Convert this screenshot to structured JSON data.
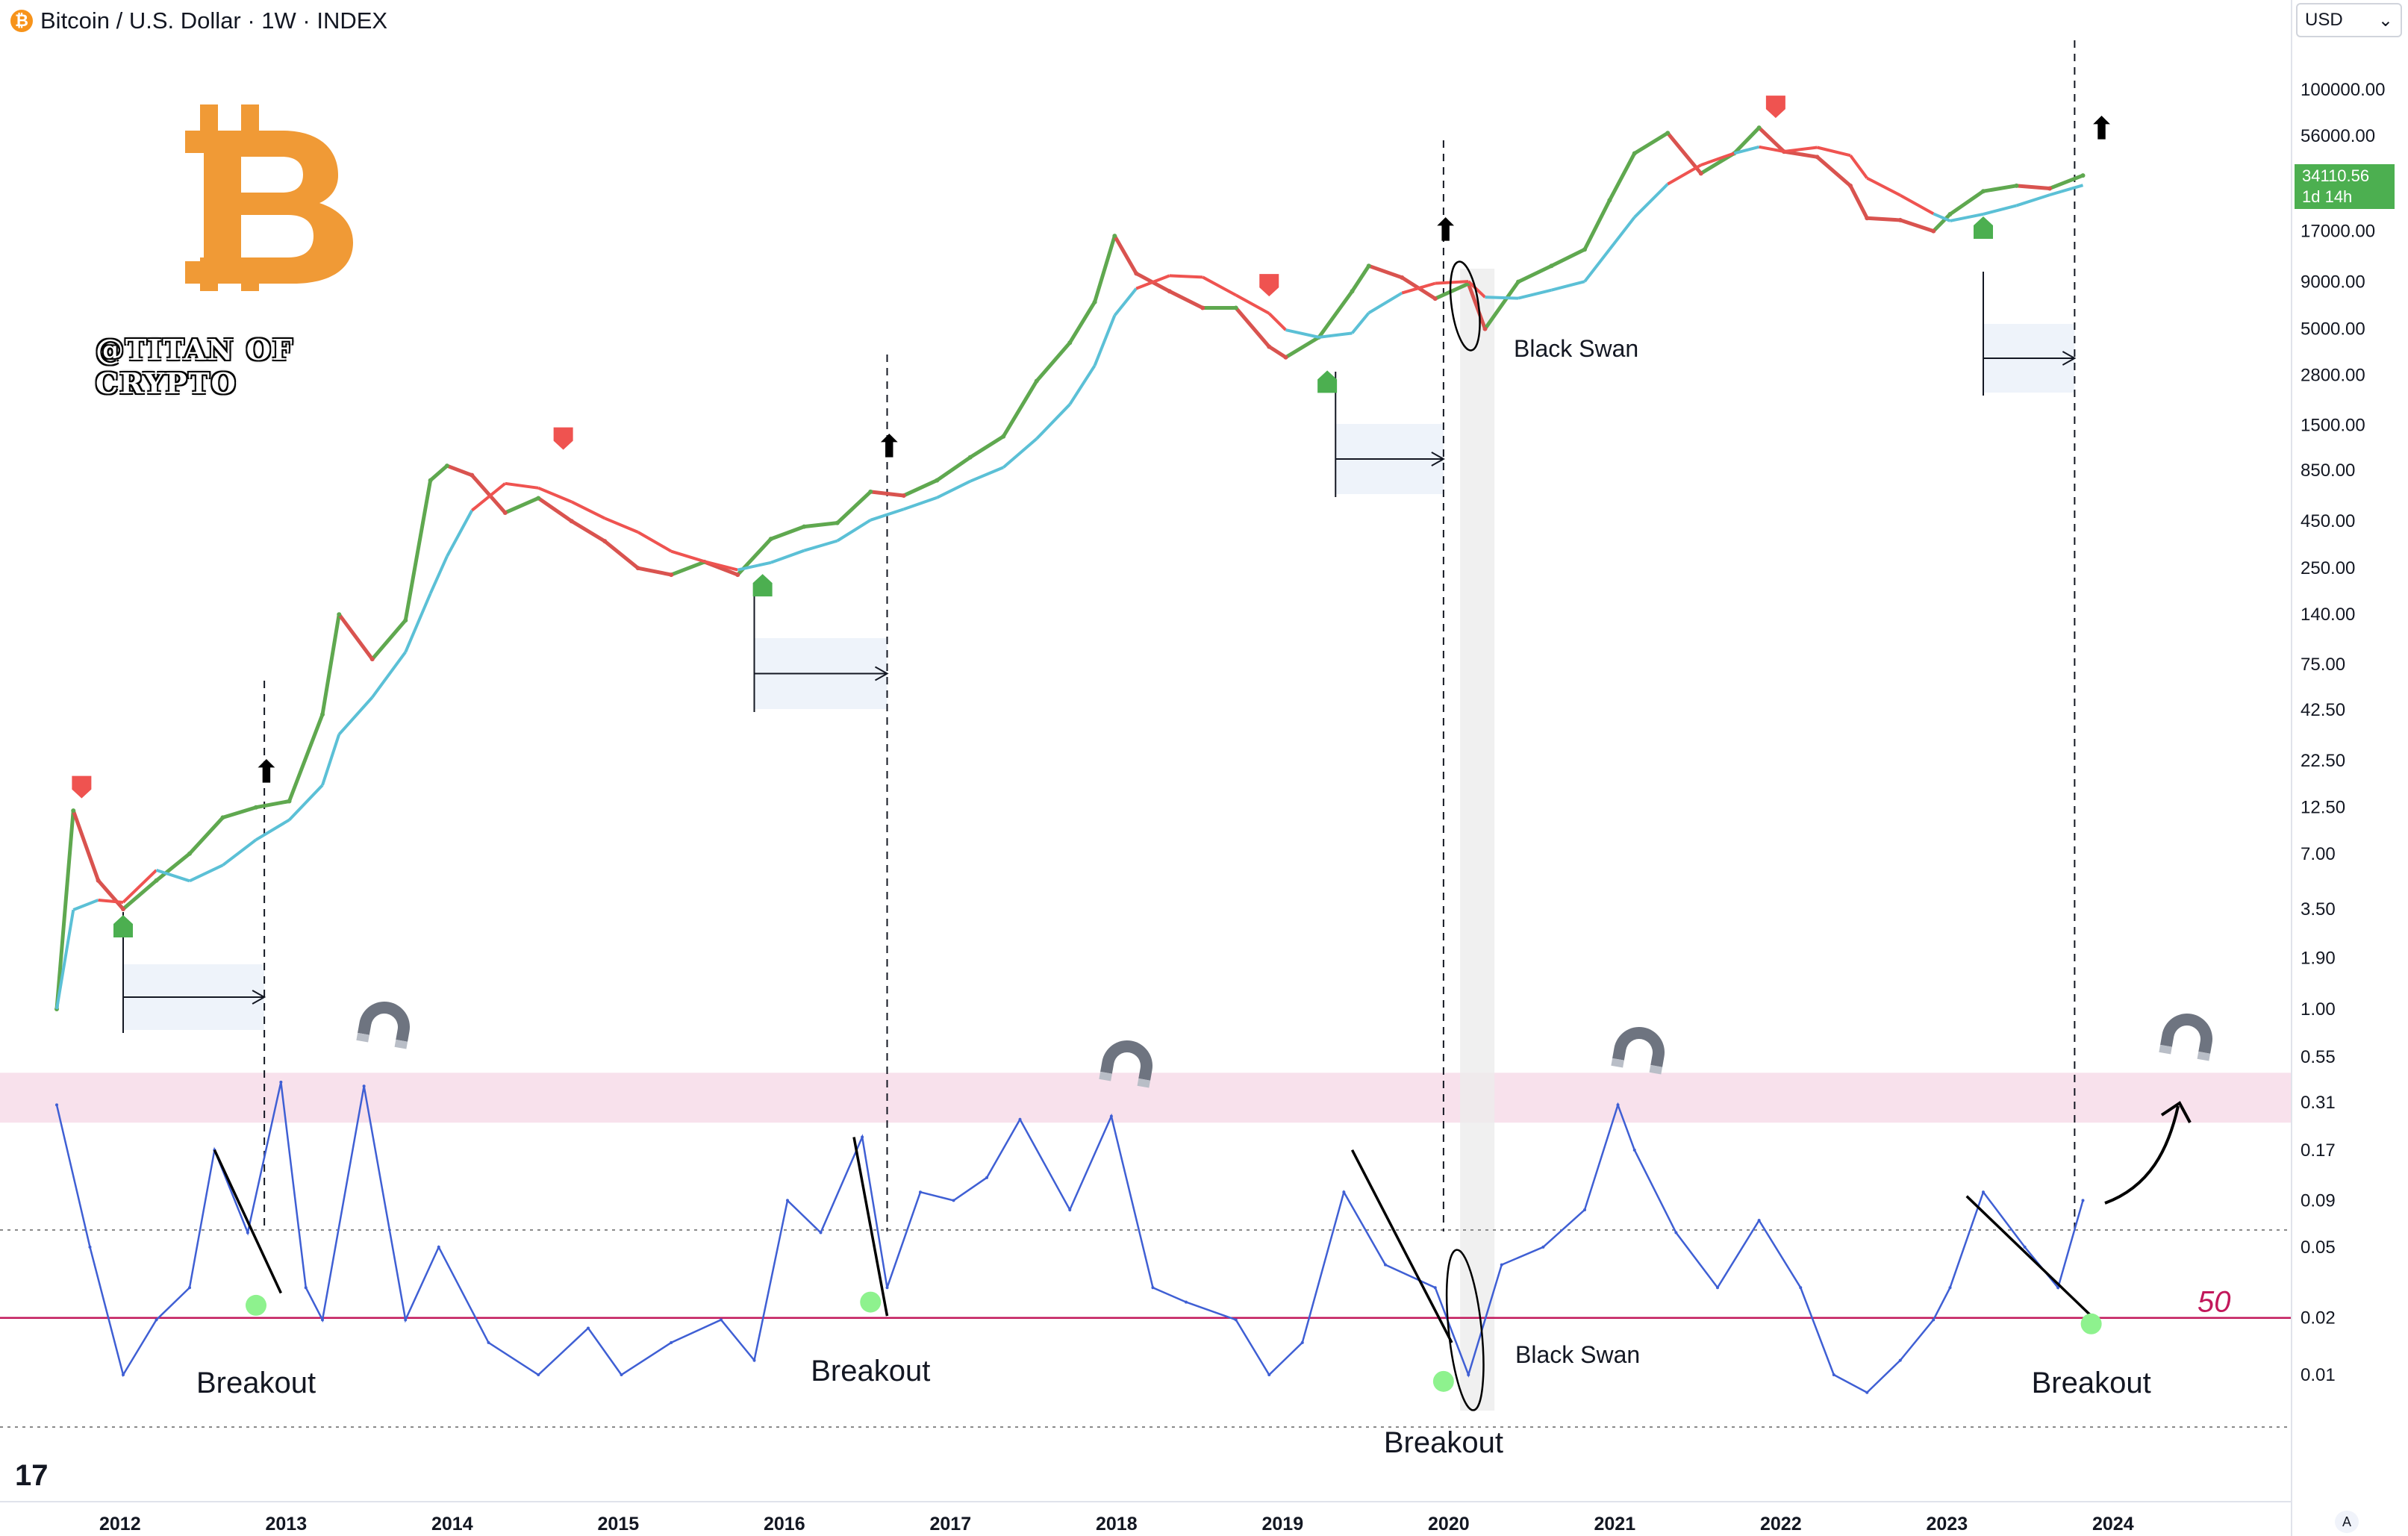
{
  "header": {
    "symbol_badge": "₿",
    "title": "Bitcoin / U.S. Dollar · 1W · INDEX"
  },
  "currency_select": {
    "value": "USD"
  },
  "last_price": {
    "value": "34110.56",
    "countdown": "1d 14h"
  },
  "watermark": {
    "logo_glyph": "B",
    "name": "@TITAN OF CRYPTO"
  },
  "tradingview_logo": "17",
  "auto_scale_button": "A",
  "colors": {
    "up_candle": "#5fa84f",
    "down_candle": "#d9534f",
    "ma_bull": "#5bc0d6",
    "ma_bear": "#ef5350",
    "oscillator": "#3f5fd4",
    "fifty_line": "#c2185b",
    "overbought_band": "#f8e1ec",
    "logo_orange": "#f09a36",
    "signal_green": "#4caf50",
    "signal_red": "#ef5350",
    "breakout_dot": "#8ef28e",
    "projection_box": "#eef3fa"
  },
  "annotations": {
    "breakout_labels": [
      "Breakout",
      "Breakout",
      "Breakout",
      "Breakout"
    ],
    "black_swan_labels": [
      "Black Swan",
      "Black Swan"
    ],
    "fifty_label": "50",
    "arrow_glyph": "⬆"
  },
  "chart_data": {
    "type": "line",
    "x_axis": {
      "ticks": [
        "2012",
        "2013",
        "2014",
        "2015",
        "2016",
        "2017",
        "2018",
        "2019",
        "2020",
        "2021",
        "2022",
        "2023",
        "2024"
      ]
    },
    "price_axis": {
      "scale": "log",
      "ticks": [
        "100000.00",
        "56000.00",
        "17000.00",
        "9000.00",
        "5000.00",
        "2800.00",
        "1500.00",
        "850.00",
        "450.00",
        "250.00",
        "140.00",
        "75.00",
        "42.50",
        "22.50",
        "12.50",
        "7.00",
        "3.50",
        "1.90",
        "1.00"
      ]
    },
    "oscillator_axis": {
      "scale": "log",
      "ticks": [
        "0.55",
        "0.31",
        "0.17",
        "0.09",
        "0.05",
        "0.02",
        "0.01"
      ]
    },
    "series": [
      {
        "name": "Bitcoin / U.S. Dollar",
        "x": [
          2011.6,
          2011.7,
          2011.85,
          2012.0,
          2012.2,
          2012.4,
          2012.6,
          2012.8,
          2013.0,
          2013.2,
          2013.3,
          2013.5,
          2013.7,
          2013.85,
          2013.95,
          2014.1,
          2014.3,
          2014.5,
          2014.7,
          2014.9,
          2015.1,
          2015.3,
          2015.5,
          2015.7,
          2015.9,
          2016.1,
          2016.3,
          2016.5,
          2016.7,
          2016.9,
          2017.1,
          2017.3,
          2017.5,
          2017.7,
          2017.85,
          2017.97,
          2018.1,
          2018.3,
          2018.5,
          2018.7,
          2018.9,
          2019.0,
          2019.2,
          2019.4,
          2019.5,
          2019.7,
          2019.9,
          2020.1,
          2020.2,
          2020.4,
          2020.6,
          2020.8,
          2020.95,
          2021.1,
          2021.3,
          2021.5,
          2021.7,
          2021.85,
          2022.0,
          2022.2,
          2022.4,
          2022.5,
          2022.7,
          2022.9,
          2023.0,
          2023.2,
          2023.4,
          2023.6,
          2023.8
        ],
        "values": [
          1.0,
          12.0,
          5.0,
          3.5,
          5.0,
          7.0,
          11.0,
          12.5,
          13.5,
          40.0,
          140.0,
          80.0,
          130.0,
          750.0,
          900.0,
          800.0,
          500.0,
          600.0,
          450.0,
          350.0,
          250.0,
          230.0,
          270.0,
          230.0,
          360.0,
          420.0,
          440.0,
          650.0,
          620.0,
          750.0,
          1000.0,
          1300.0,
          2600.0,
          4200.0,
          7000.0,
          16000.0,
          10000.0,
          8000.0,
          6500.0,
          6500.0,
          4000.0,
          3500.0,
          4500.0,
          8000.0,
          11000.0,
          9500.0,
          7300.0,
          8800.0,
          5000.0,
          9000.0,
          11000.0,
          13500.0,
          25000.0,
          45000.0,
          58000.0,
          35000.0,
          45000.0,
          62000.0,
          46000.0,
          43000.0,
          30000.0,
          20000.0,
          19500.0,
          17000.0,
          21000.0,
          28000.0,
          30000.0,
          29000.0,
          34110.56
        ]
      },
      {
        "name": "Oscillator",
        "x": [
          2011.6,
          2011.8,
          2012.0,
          2012.2,
          2012.4,
          2012.55,
          2012.75,
          2012.95,
          2013.1,
          2013.2,
          2013.45,
          2013.7,
          2013.9,
          2014.2,
          2014.5,
          2014.8,
          2015.0,
          2015.3,
          2015.6,
          2015.8,
          2016.0,
          2016.2,
          2016.45,
          2016.6,
          2016.8,
          2017.0,
          2017.2,
          2017.4,
          2017.7,
          2017.95,
          2018.2,
          2018.4,
          2018.7,
          2018.9,
          2019.1,
          2019.35,
          2019.6,
          2019.9,
          2020.1,
          2020.3,
          2020.55,
          2020.8,
          2021.0,
          2021.1,
          2021.35,
          2021.6,
          2021.85,
          2022.1,
          2022.3,
          2022.5,
          2022.7,
          2022.9,
          2023.0,
          2023.2,
          2023.45,
          2023.65,
          2023.8
        ],
        "values": [
          0.3,
          0.05,
          0.01,
          0.02,
          0.03,
          0.17,
          0.06,
          0.4,
          0.03,
          0.02,
          0.38,
          0.02,
          0.05,
          0.015,
          0.01,
          0.018,
          0.01,
          0.015,
          0.02,
          0.012,
          0.09,
          0.06,
          0.2,
          0.03,
          0.1,
          0.09,
          0.12,
          0.25,
          0.08,
          0.26,
          0.03,
          0.025,
          0.02,
          0.01,
          0.015,
          0.1,
          0.04,
          0.03,
          0.01,
          0.04,
          0.05,
          0.08,
          0.3,
          0.17,
          0.06,
          0.03,
          0.07,
          0.03,
          0.01,
          0.008,
          0.012,
          0.02,
          0.03,
          0.1,
          0.05,
          0.03,
          0.09
        ]
      }
    ]
  }
}
